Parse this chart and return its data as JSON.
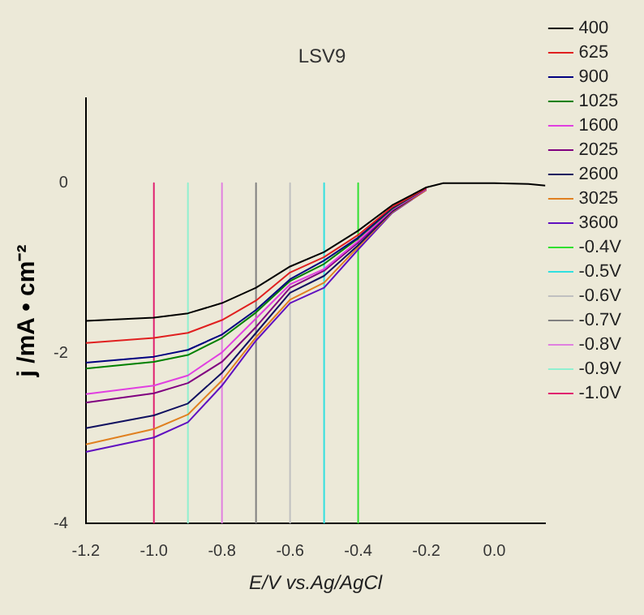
{
  "chart_data": {
    "type": "line",
    "title": "LSV9",
    "xlabel": "E/V vs.Ag/AgCl",
    "ylabel": "j /mA • cm⁻²",
    "x": [
      -1.2,
      -1.0,
      -0.9,
      -0.8,
      -0.7,
      -0.6,
      -0.5,
      -0.4,
      -0.3,
      -0.2,
      -0.15,
      0,
      0.1,
      0.15
    ],
    "xlim": [
      -1.2,
      0.15
    ],
    "xticks": [
      {
        "value": -1.2,
        "label": "-1.2"
      },
      {
        "value": -1,
        "label": "-1.0"
      },
      {
        "value": -0.8,
        "label": "-0.8"
      },
      {
        "value": -0.6,
        "label": "-0.6"
      },
      {
        "value": -0.4,
        "label": "-0.4"
      },
      {
        "value": -0.2,
        "label": "-0.2"
      },
      {
        "value": 0,
        "label": "0.0"
      }
    ],
    "ylim": [
      -4,
      1
    ],
    "yticks": [
      -4,
      -2,
      0
    ],
    "grid": false,
    "legend": "right",
    "marker": "none",
    "line_style": "solid",
    "series": [
      {
        "name": "400",
        "color": "#000000",
        "values": [
          -1.62,
          -1.58,
          -1.53,
          -1.41,
          -1.23,
          -0.98,
          -0.81,
          -0.56,
          -0.26,
          -0.05,
          0,
          0,
          -0.01,
          -0.03
        ]
      },
      {
        "name": "625",
        "color": "#e02020",
        "values": [
          -1.88,
          -1.82,
          -1.76,
          -1.61,
          -1.38,
          -1.05,
          -0.87,
          -0.61,
          -0.28,
          -0.06,
          null,
          null,
          null,
          null
        ]
      },
      {
        "name": "900",
        "color": "#000080",
        "values": [
          -2.11,
          -2.04,
          -1.96,
          -1.78,
          -1.49,
          -1.13,
          -0.91,
          -0.64,
          -0.29,
          -0.06,
          null,
          null,
          null,
          null
        ]
      },
      {
        "name": "1025",
        "color": "#008000",
        "values": [
          -2.18,
          -2.1,
          -2.02,
          -1.82,
          -1.52,
          -1.15,
          -0.95,
          -0.65,
          -0.3,
          -0.06,
          null,
          null,
          null,
          null
        ]
      },
      {
        "name": "1600",
        "color": "#e040e0",
        "values": [
          -2.48,
          -2.38,
          -2.26,
          -1.99,
          -1.59,
          -1.19,
          -1.01,
          -0.68,
          -0.31,
          -0.07,
          null,
          null,
          null,
          null
        ]
      },
      {
        "name": "2025",
        "color": "#800080",
        "values": [
          -2.58,
          -2.47,
          -2.35,
          -2.1,
          -1.69,
          -1.23,
          -1.03,
          -0.7,
          -0.32,
          -0.07,
          null,
          null,
          null,
          null
        ]
      },
      {
        "name": "2600",
        "color": "#101060",
        "values": [
          -2.88,
          -2.73,
          -2.59,
          -2.23,
          -1.76,
          -1.29,
          -1.09,
          -0.73,
          -0.33,
          -0.07,
          null,
          null,
          null,
          null
        ]
      },
      {
        "name": "3025",
        "color": "#e08020",
        "values": [
          -3.07,
          -2.89,
          -2.72,
          -2.32,
          -1.81,
          -1.37,
          -1.17,
          -0.75,
          -0.34,
          -0.08,
          null,
          null,
          null,
          null
        ]
      },
      {
        "name": "3600",
        "color": "#6010c0",
        "values": [
          -3.16,
          -2.99,
          -2.81,
          -2.38,
          -1.85,
          -1.41,
          -1.23,
          -0.78,
          -0.35,
          -0.08,
          null,
          null,
          null,
          null
        ]
      },
      {
        "name": "-0.4V",
        "color": "#30e030",
        "x": [
          -0.4,
          -0.4
        ],
        "values": [
          0,
          -4
        ]
      },
      {
        "name": "-0.5V",
        "color": "#30e0e0",
        "x": [
          -0.5,
          -0.5
        ],
        "values": [
          0,
          -4
        ]
      },
      {
        "name": "-0.6V",
        "color": "#c0c0c0",
        "x": [
          -0.6,
          -0.6
        ],
        "values": [
          0,
          -4
        ]
      },
      {
        "name": "-0.7V",
        "color": "#808080",
        "x": [
          -0.7,
          -0.7
        ],
        "values": [
          0,
          -4
        ]
      },
      {
        "name": "-0.8V",
        "color": "#e080e0",
        "x": [
          -0.8,
          -0.8
        ],
        "values": [
          0,
          -4
        ]
      },
      {
        "name": "-0.9V",
        "color": "#90f0d0",
        "x": [
          -0.9,
          -0.9
        ],
        "values": [
          0,
          -4
        ]
      },
      {
        "name": "-1.0V",
        "color": "#e02070",
        "x": [
          -1,
          -1
        ],
        "values": [
          0,
          -4
        ]
      }
    ]
  }
}
